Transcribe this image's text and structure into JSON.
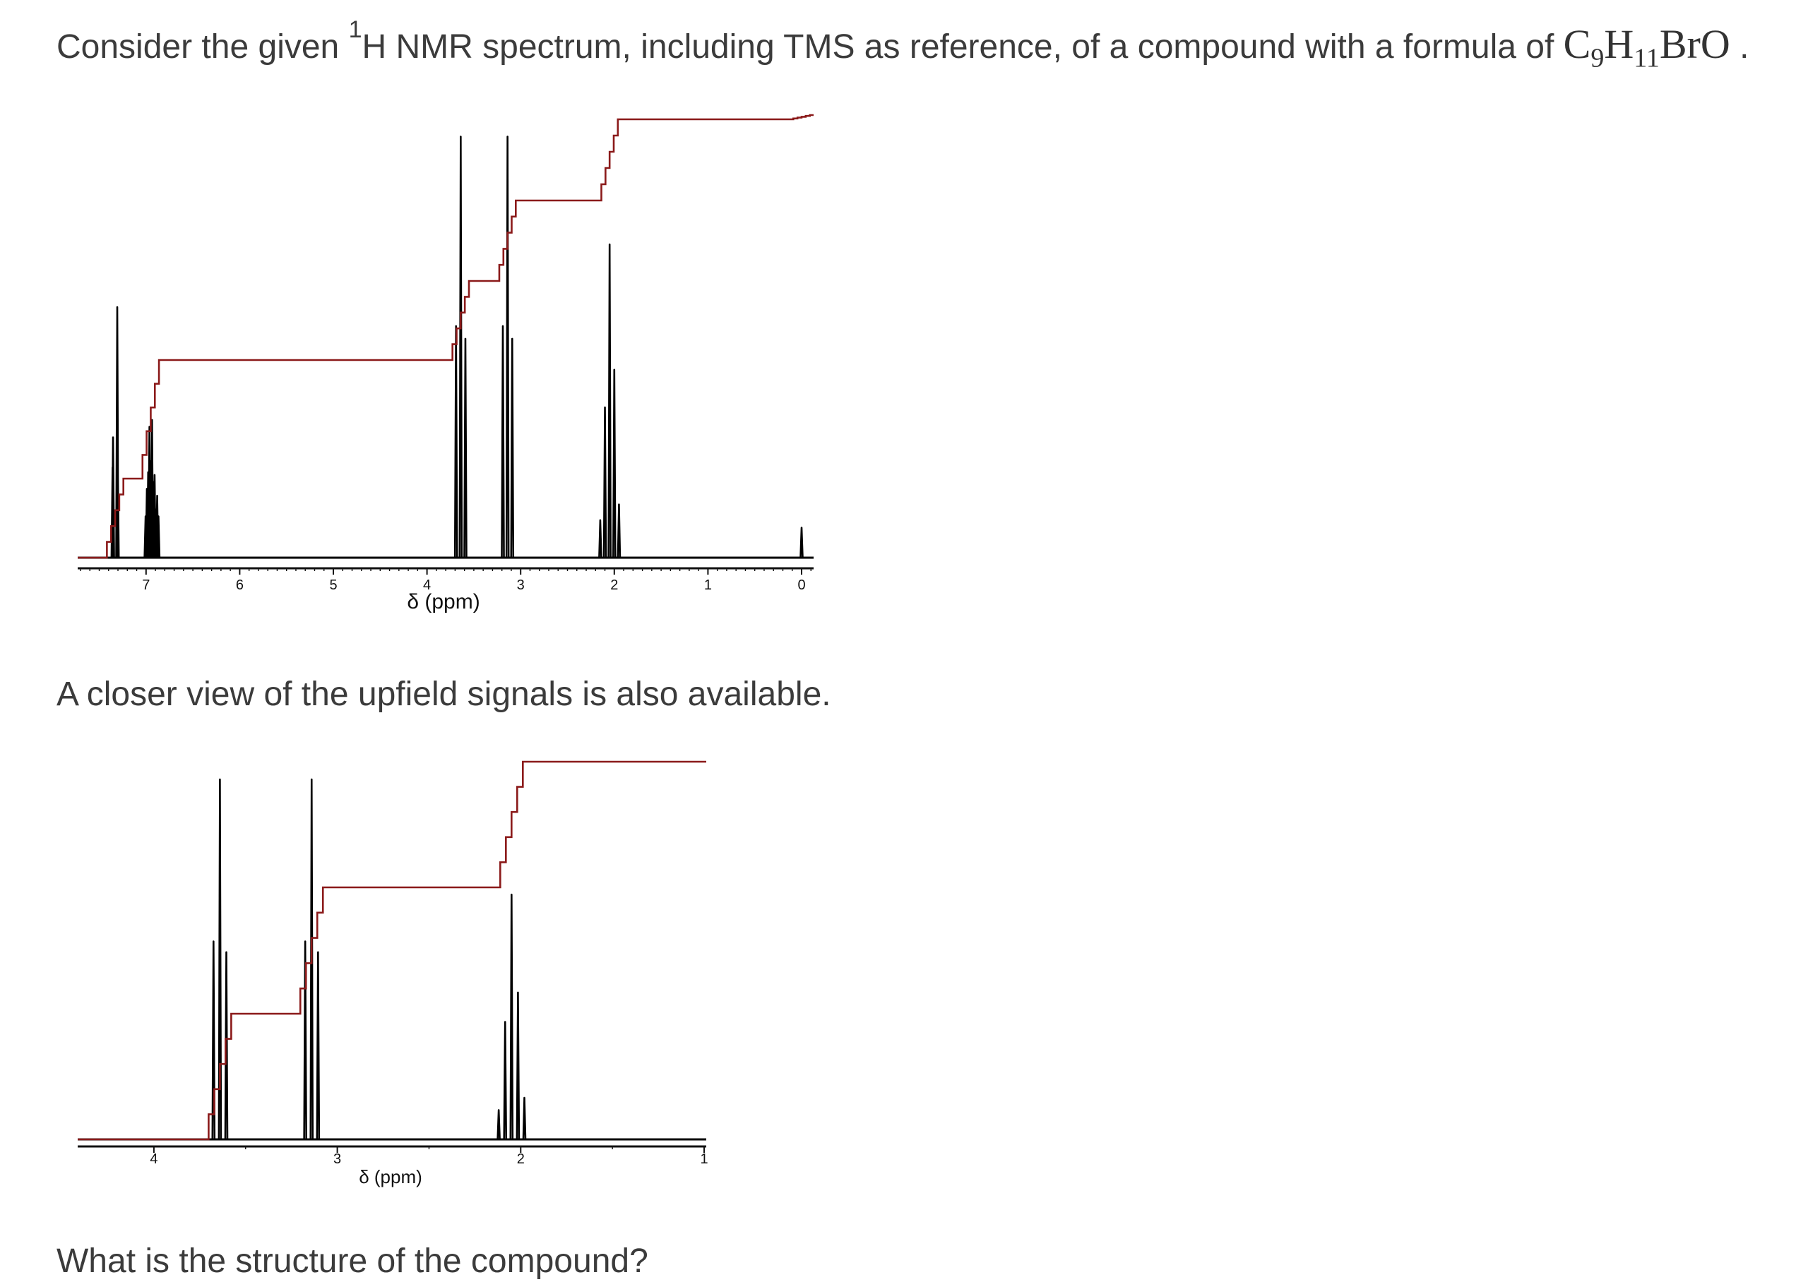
{
  "intro": {
    "prefix": "Consider the given ",
    "sup": "1",
    "rest": "H NMR spectrum, including TMS as reference, of a compound with a formula of ",
    "formula": {
      "C": "C",
      "c_sub": "9",
      "H": "H",
      "h_sub": "11",
      "tail": "BrO"
    },
    "period": "."
  },
  "middle_text": "A closer view of the upfield signals is also available.",
  "bottom_text_cut": "What is the structure of the compound?",
  "colors": {
    "spectrum": "#000000",
    "integral": "#8b1a1a",
    "text": "#3b3b3b"
  },
  "chart_data": [
    {
      "type": "line",
      "title": "1H NMR spectrum (full)",
      "xlabel": "δ (ppm)",
      "ylabel": "",
      "x_reversed": true,
      "xlim": [
        7.7,
        -0.1
      ],
      "ticks": [
        7,
        6,
        5,
        4,
        3,
        2,
        1,
        0
      ],
      "tick_labels": [
        "7",
        "6",
        "5",
        "4",
        "3",
        "2",
        "1",
        "0"
      ],
      "grid": false,
      "signals": [
        {
          "shift": 7.33,
          "multiplicity": "d",
          "rel_height": 1.0,
          "integral": 2
        },
        {
          "shift": 6.95,
          "multiplicity": "m",
          "rel_height": 0.55,
          "integral": 3
        },
        {
          "shift": 3.64,
          "multiplicity": "t",
          "rel_height": 1.68,
          "integral": 2
        },
        {
          "shift": 3.14,
          "multiplicity": "t",
          "rel_height": 1.68,
          "integral": 2
        },
        {
          "shift": 2.05,
          "multiplicity": "quintet",
          "rel_height": 1.25,
          "integral": 2
        },
        {
          "shift": 0.0,
          "multiplicity": "s",
          "label": "TMS",
          "rel_height": 0.12,
          "integral": 0
        }
      ]
    },
    {
      "type": "line",
      "title": "1H NMR spectrum (upfield expansion)",
      "xlabel": "δ (ppm)",
      "ylabel": "",
      "x_reversed": true,
      "xlim": [
        4.4,
        1.0
      ],
      "ticks": [
        4,
        3,
        2,
        1
      ],
      "tick_labels": [
        "4",
        "3",
        "2",
        "1"
      ],
      "grid": false,
      "signals": [
        {
          "shift": 3.64,
          "multiplicity": "t",
          "rel_height": 1.0,
          "integral": 2
        },
        {
          "shift": 3.14,
          "multiplicity": "t",
          "rel_height": 1.0,
          "integral": 2
        },
        {
          "shift": 2.05,
          "multiplicity": "quintet",
          "rel_height": 0.68,
          "integral": 2
        }
      ]
    }
  ]
}
